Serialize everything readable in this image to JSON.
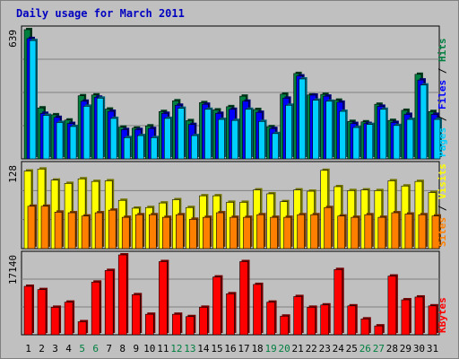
{
  "title": "Daily usage for March 2011",
  "colors": {
    "background": "#c0c0c0",
    "frame_border": "#808080",
    "title": "#0000c0",
    "grid": "#808080",
    "axis_text": "#000000",
    "weekend_text": "#008040",
    "hits_face": "#008040",
    "files_face": "#0000ff",
    "pages_face": "#00d0ff",
    "visits_face": "#ffff00",
    "sites_face": "#ff8000",
    "kbytes_face": "#ff0000"
  },
  "chart_data": [
    {
      "type": "bar",
      "name": "hits-files-pages",
      "ymax_label": "639",
      "ylim": [
        0,
        639
      ],
      "legend": {
        "pages": "Pages",
        "files": "Files",
        "hits": "Hits",
        "sep": " / "
      },
      "grid": true,
      "series": [
        {
          "name": "Hits",
          "color": "#008040",
          "values": [
            639,
            252,
            218,
            192,
            312,
            316,
            246,
            157,
            152,
            163,
            234,
            287,
            189,
            278,
            242,
            258,
            310,
            244,
            159,
            320,
            422,
            316,
            319,
            290,
            185,
            183,
            270,
            190,
            240,
            418,
            234
          ]
        },
        {
          "name": "Files",
          "color": "#0000ff",
          "values": [
            595,
            225,
            205,
            175,
            285,
            305,
            235,
            145,
            145,
            150,
            225,
            265,
            170,
            270,
            225,
            245,
            285,
            230,
            150,
            300,
            410,
            315,
            310,
            280,
            175,
            175,
            260,
            180,
            220,
            390,
            220
          ]
        },
        {
          "name": "Pages",
          "color": "#00d0ff",
          "values": [
            585,
            215,
            180,
            160,
            260,
            300,
            200,
            105,
            115,
            105,
            200,
            250,
            115,
            245,
            195,
            190,
            245,
            185,
            125,
            265,
            395,
            290,
            285,
            235,
            155,
            170,
            245,
            165,
            195,
            365,
            195
          ]
        }
      ],
      "x_ticks": [
        "1",
        "2",
        "3",
        "4",
        "5",
        "6",
        "7",
        "8",
        "9",
        "10",
        "11",
        "12",
        "13",
        "14",
        "15",
        "16",
        "17",
        "18",
        "19",
        "20",
        "21",
        "22",
        "23",
        "24",
        "25",
        "26",
        "27",
        "28",
        "29",
        "30",
        "31"
      ],
      "weekend_days": [
        5,
        6,
        12,
        13,
        19,
        20,
        26,
        27
      ]
    },
    {
      "type": "bar",
      "name": "visits-sites",
      "ymax_label": "128",
      "ylim": [
        0,
        128
      ],
      "legend": {
        "sites": "Sites",
        "visits": "Visits",
        "sep": " / "
      },
      "grid": true,
      "series": [
        {
          "name": "Visits",
          "color": "#ffff00",
          "values": [
            119,
            122,
            105,
            100,
            107,
            103,
            104,
            74,
            62,
            63,
            70,
            75,
            63,
            81,
            81,
            71,
            71,
            90,
            84,
            72,
            90,
            88,
            120,
            95,
            89,
            90,
            89,
            104,
            96,
            103,
            86
          ]
        },
        {
          "name": "Sites",
          "color": "#ff8000",
          "values": [
            65,
            65,
            56,
            55,
            50,
            55,
            59,
            48,
            52,
            52,
            48,
            52,
            45,
            48,
            55,
            48,
            48,
            52,
            48,
            48,
            52,
            52,
            63,
            50,
            48,
            52,
            48,
            55,
            53,
            52,
            50
          ]
        }
      ]
    },
    {
      "type": "bar",
      "name": "kbytes",
      "ymax_label": "17140",
      "ylim": [
        0,
        17140
      ],
      "legend": {
        "kbytes": "KBytes"
      },
      "grid": true,
      "series": [
        {
          "name": "KBytes",
          "color": "#ff0000",
          "values": [
            10400,
            9700,
            5900,
            7000,
            2800,
            11300,
            13800,
            17140,
            8600,
            4400,
            15700,
            4400,
            3900,
            5900,
            12400,
            8800,
            15700,
            10800,
            7000,
            4000,
            8200,
            5900,
            6400,
            14000,
            6200,
            3400,
            1900,
            12600,
            7500,
            8100,
            6200
          ]
        }
      ]
    }
  ]
}
